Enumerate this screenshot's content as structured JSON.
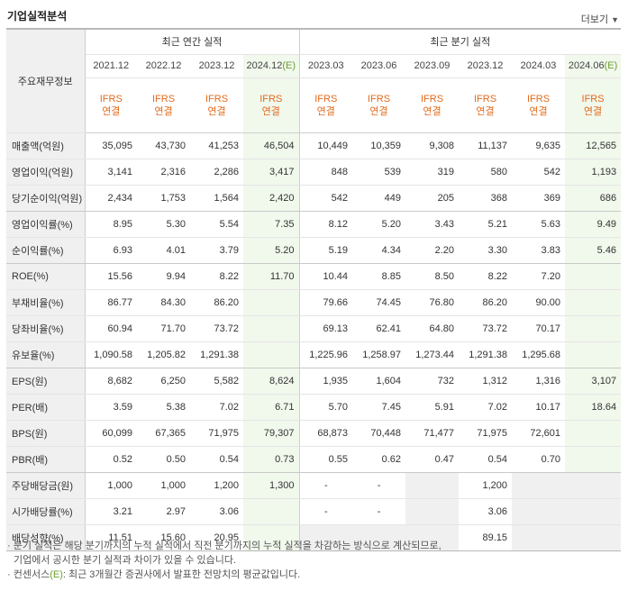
{
  "header": {
    "title": "기업실적분석",
    "more_label": "더보기",
    "more_icon": "chevron-down"
  },
  "table": {
    "corner_label": "주요재무정보",
    "group_annual": "최근 연간 실적",
    "group_quarter": "최근 분기 실적",
    "annual_periods": [
      "2021.12",
      "2022.12",
      "2023.12",
      "2024.12"
    ],
    "annual_est_suffix": "(E)",
    "quarter_periods": [
      "2023.03",
      "2023.06",
      "2023.09",
      "2023.12",
      "2024.03",
      "2024.06"
    ],
    "quarter_est_suffix": "(E)",
    "basis_top": "IFRS",
    "basis_bottom": "연결",
    "rows": [
      {
        "label": "매출액(억원)",
        "annual": [
          "35,095",
          "43,730",
          "41,253",
          "46,504"
        ],
        "quarter": [
          "10,449",
          "10,359",
          "9,308",
          "11,137",
          "9,635",
          "12,565"
        ]
      },
      {
        "label": "영업이익(억원)",
        "annual": [
          "3,141",
          "2,316",
          "2,286",
          "3,417"
        ],
        "quarter": [
          "848",
          "539",
          "319",
          "580",
          "542",
          "1,193"
        ]
      },
      {
        "label": "당기순이익(억원)",
        "annual": [
          "2,434",
          "1,753",
          "1,564",
          "2,420"
        ],
        "quarter": [
          "542",
          "449",
          "205",
          "368",
          "369",
          "686"
        ]
      },
      {
        "label": "영업이익률(%)",
        "annual": [
          "8.95",
          "5.30",
          "5.54",
          "7.35"
        ],
        "quarter": [
          "8.12",
          "5.20",
          "3.43",
          "5.21",
          "5.63",
          "9.49"
        ]
      },
      {
        "label": "순이익률(%)",
        "annual": [
          "6.93",
          "4.01",
          "3.79",
          "5.20"
        ],
        "quarter": [
          "5.19",
          "4.34",
          "2.20",
          "3.30",
          "3.83",
          "5.46"
        ]
      },
      {
        "label": "ROE(%)",
        "annual": [
          "15.56",
          "9.94",
          "8.22",
          "11.70"
        ],
        "quarter": [
          "10.44",
          "8.85",
          "8.50",
          "8.22",
          "7.20",
          ""
        ]
      },
      {
        "label": "부채비율(%)",
        "annual": [
          "86.77",
          "84.30",
          "86.20",
          ""
        ],
        "quarter": [
          "79.66",
          "74.45",
          "76.80",
          "86.20",
          "90.00",
          ""
        ]
      },
      {
        "label": "당좌비율(%)",
        "annual": [
          "60.94",
          "71.70",
          "73.72",
          ""
        ],
        "quarter": [
          "69.13",
          "62.41",
          "64.80",
          "73.72",
          "70.17",
          ""
        ]
      },
      {
        "label": "유보율(%)",
        "annual": [
          "1,090.58",
          "1,205.82",
          "1,291.38",
          ""
        ],
        "quarter": [
          "1,225.96",
          "1,258.97",
          "1,273.44",
          "1,291.38",
          "1,295.68",
          ""
        ]
      },
      {
        "label": "EPS(원)",
        "annual": [
          "8,682",
          "6,250",
          "5,582",
          "8,624"
        ],
        "quarter": [
          "1,935",
          "1,604",
          "732",
          "1,312",
          "1,316",
          "3,107"
        ]
      },
      {
        "label": "PER(배)",
        "annual": [
          "3.59",
          "5.38",
          "7.02",
          "6.71"
        ],
        "quarter": [
          "5.70",
          "7.45",
          "5.91",
          "7.02",
          "10.17",
          "18.64"
        ]
      },
      {
        "label": "BPS(원)",
        "annual": [
          "60,099",
          "67,365",
          "71,975",
          "79,307"
        ],
        "quarter": [
          "68,873",
          "70,448",
          "71,477",
          "71,975",
          "72,601",
          ""
        ]
      },
      {
        "label": "PBR(배)",
        "annual": [
          "0.52",
          "0.50",
          "0.54",
          "0.73"
        ],
        "quarter": [
          "0.55",
          "0.62",
          "0.47",
          "0.54",
          "0.70",
          ""
        ]
      },
      {
        "label": "주당배당금(원)",
        "annual": [
          "1,000",
          "1,000",
          "1,200",
          "1,300"
        ],
        "quarter": [
          "-",
          "-",
          "",
          "1,200",
          "",
          ""
        ]
      },
      {
        "label": "시가배당률(%)",
        "annual": [
          "3.21",
          "2.97",
          "3.06",
          ""
        ],
        "quarter": [
          "-",
          "-",
          "",
          "3.06",
          "",
          ""
        ]
      },
      {
        "label": "배당성향(%)",
        "annual": [
          "11.51",
          "15.60",
          "20.95",
          ""
        ],
        "quarter": [
          "",
          "",
          "",
          "89.15",
          "",
          ""
        ]
      }
    ]
  },
  "notes": {
    "line1": "분기 실적은 해당 분기까지의 누적 실적에서 직전 분기까지의 누적 실적을 차감하는 방식으로 계산되므로,",
    "line2": "기업에서 공시한 분기 실적과 차이가 있을 수 있습니다.",
    "line3_prefix": "컨센서스",
    "line3_e": "(E)",
    "line3_rest": ": 최근 3개월간 증권사에서 발표한 전망치의 평균값입니다.",
    "bullet": "·"
  },
  "colors": {
    "ifrs_orange": "#e36a1b",
    "estimate_green": "#6a9e2f",
    "estimate_bg": "#f1f8ec",
    "label_bg": "#f0f0f0"
  }
}
